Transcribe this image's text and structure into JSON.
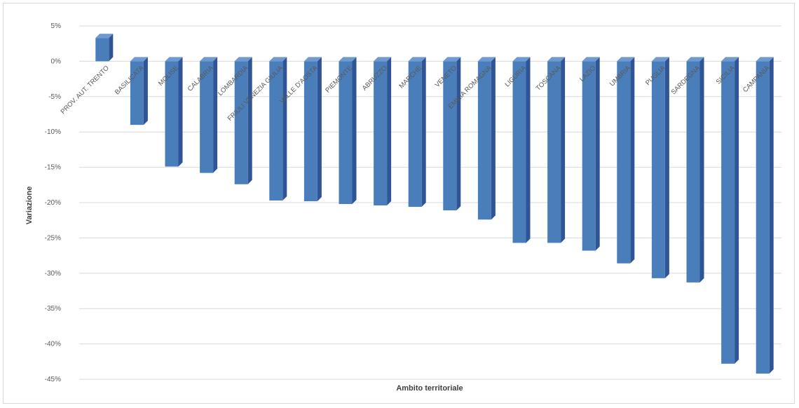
{
  "chart_data": {
    "type": "bar",
    "title": "",
    "xlabel": "Ambito territoriale",
    "ylabel": "Variazione",
    "ylim": [
      -45,
      5
    ],
    "yticks": [
      5,
      0,
      -5,
      -10,
      -15,
      -20,
      -25,
      -30,
      -35,
      -40,
      -45
    ],
    "ytick_labels": [
      "5%",
      "0%",
      "-5%",
      "-10%",
      "-15%",
      "-20%",
      "-25%",
      "-30%",
      "-35%",
      "-40%",
      "-45%"
    ],
    "grid": true,
    "legend": "none",
    "bar_color": "#4a7ebb",
    "categories": [
      "PROV. AUT. TRENTO",
      "BASILICATA",
      "MOLISE",
      "CALABRIA",
      "LOMBARDIA",
      "FRIULI VENEZIA GIULIA",
      "VALLE D'AOSTA",
      "PIEMONTE",
      "ABRUZZO",
      "MARCHE",
      "VENETO",
      "EMILIA ROMAGNA",
      "LIGURIA",
      "TOSCANA",
      "LAZIO",
      "UMBRIA",
      "PUGLIA",
      "SARDEGNA",
      "SICILIA",
      "CAMPANIA"
    ],
    "series": [
      {
        "values": [
          3.3,
          -9.0,
          -14.9,
          -15.8,
          -17.4,
          -19.7,
          -19.8,
          -20.2,
          -20.4,
          -20.6,
          -21.1,
          -22.4,
          -25.7,
          -25.7,
          -26.8,
          -28.6,
          -30.7,
          -31.3,
          -42.8,
          -44.2
        ]
      }
    ]
  }
}
